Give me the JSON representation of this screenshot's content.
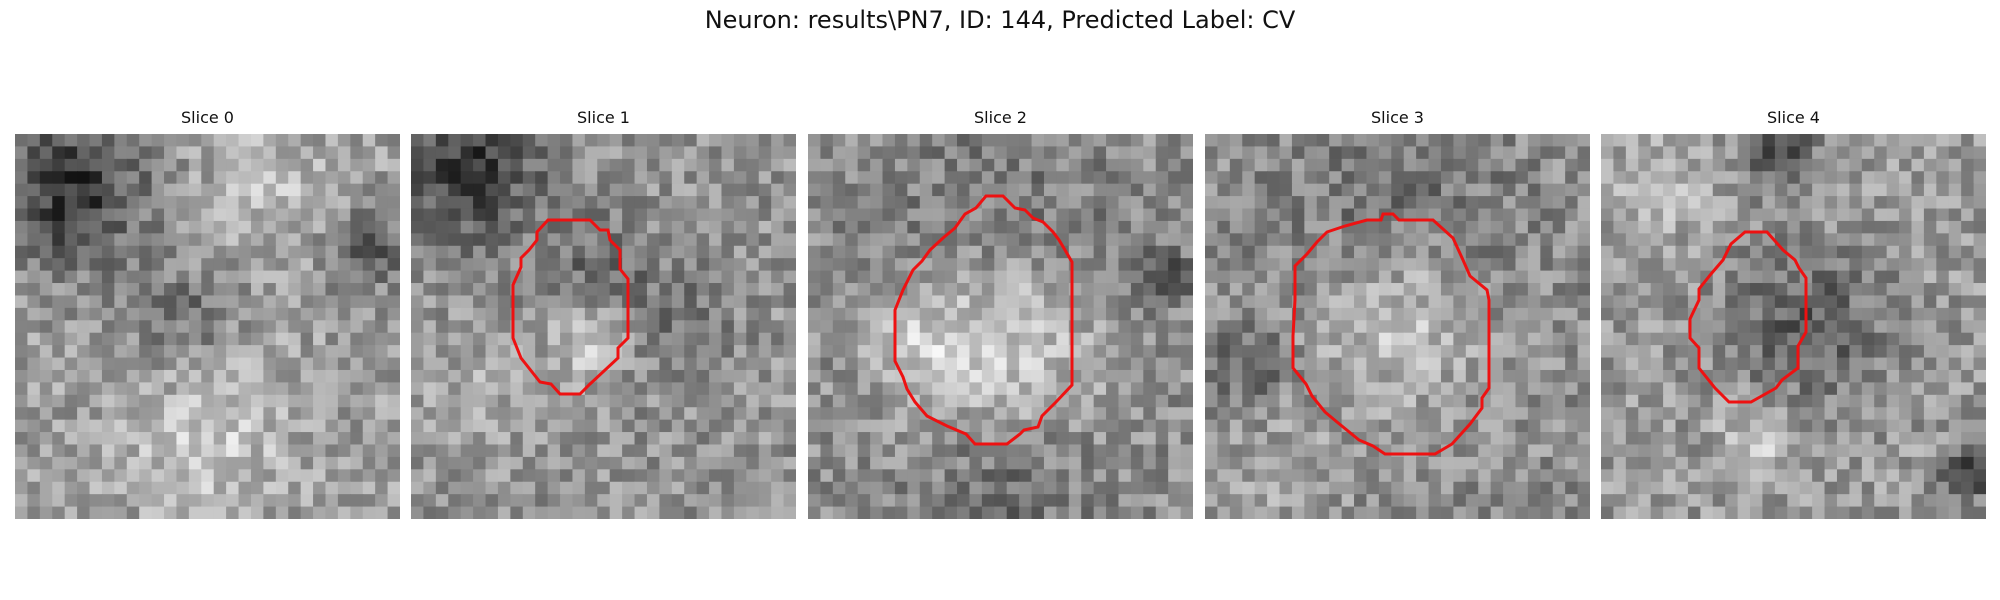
{
  "figure": {
    "title": "Neuron: results\\PN7, ID: 144, Predicted Label: CV"
  },
  "panels": [
    {
      "title": "Slice 0",
      "has_outline": false
    },
    {
      "title": "Slice 1",
      "has_outline": true
    },
    {
      "title": "Slice 2",
      "has_outline": true
    },
    {
      "title": "Slice 3",
      "has_outline": true
    },
    {
      "title": "Slice 4",
      "has_outline": true
    }
  ],
  "colors": {
    "outline": "#ee1111",
    "colormap": "grayscale"
  }
}
